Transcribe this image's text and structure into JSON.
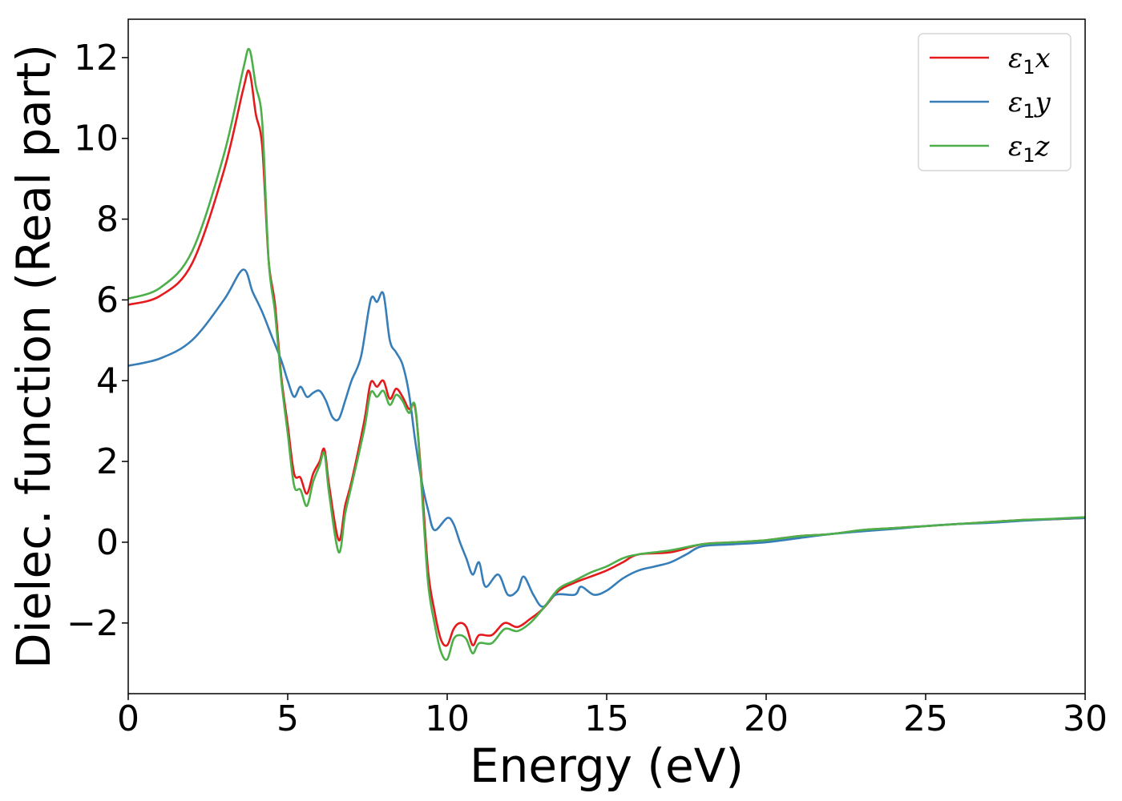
{
  "chart_data": {
    "type": "line",
    "title": "",
    "xlabel": "Energy (eV)",
    "ylabel": "Dielec. function (Real part)",
    "xlim": [
      0,
      30
    ],
    "ylim": [
      -3.75,
      12.95
    ],
    "xticks": [
      0,
      5,
      10,
      15,
      20,
      25,
      30
    ],
    "xtick_labels": [
      "0",
      "5",
      "10",
      "15",
      "20",
      "25",
      "30"
    ],
    "yticks": [
      -2,
      0,
      2,
      4,
      6,
      8,
      10,
      12
    ],
    "ytick_labels": [
      "−2",
      "0",
      "2",
      "4",
      "6",
      "8",
      "10",
      "12"
    ],
    "grid": false,
    "legend_position": "top-right",
    "series": [
      {
        "name": "ε1x",
        "legend_symbol": "ε",
        "legend_sub": "1",
        "legend_var": "x",
        "color": "#e41a1c",
        "points": [
          [
            0,
            5.88
          ],
          [
            1,
            6.1
          ],
          [
            2,
            6.9
          ],
          [
            3,
            9.2
          ],
          [
            3.6,
            11.2
          ],
          [
            3.8,
            11.65
          ],
          [
            4.0,
            10.6
          ],
          [
            4.2,
            9.8
          ],
          [
            4.4,
            7.0
          ],
          [
            4.6,
            5.9
          ],
          [
            4.8,
            4.1
          ],
          [
            5.0,
            2.9
          ],
          [
            5.2,
            1.7
          ],
          [
            5.4,
            1.6
          ],
          [
            5.6,
            1.2
          ],
          [
            5.8,
            1.7
          ],
          [
            6.0,
            2.0
          ],
          [
            6.15,
            2.3
          ],
          [
            6.3,
            1.4
          ],
          [
            6.6,
            0.05
          ],
          [
            6.8,
            0.9
          ],
          [
            7.0,
            1.5
          ],
          [
            7.4,
            3.0
          ],
          [
            7.6,
            3.95
          ],
          [
            7.8,
            3.85
          ],
          [
            8.0,
            4.0
          ],
          [
            8.2,
            3.55
          ],
          [
            8.4,
            3.8
          ],
          [
            8.6,
            3.6
          ],
          [
            8.8,
            3.3
          ],
          [
            9.0,
            3.3
          ],
          [
            9.2,
            1.5
          ],
          [
            9.4,
            -0.7
          ],
          [
            9.6,
            -1.7
          ],
          [
            9.8,
            -2.4
          ],
          [
            10.0,
            -2.55
          ],
          [
            10.2,
            -2.15
          ],
          [
            10.4,
            -2.0
          ],
          [
            10.6,
            -2.1
          ],
          [
            10.8,
            -2.55
          ],
          [
            11.0,
            -2.3
          ],
          [
            11.4,
            -2.3
          ],
          [
            11.8,
            -2.0
          ],
          [
            12.2,
            -2.1
          ],
          [
            12.6,
            -1.9
          ],
          [
            13.0,
            -1.65
          ],
          [
            13.5,
            -1.2
          ],
          [
            14.0,
            -1.0
          ],
          [
            14.5,
            -0.85
          ],
          [
            15.0,
            -0.7
          ],
          [
            15.5,
            -0.5
          ],
          [
            16.0,
            -0.3
          ],
          [
            17.0,
            -0.25
          ],
          [
            18.0,
            -0.05
          ],
          [
            19.0,
            0.0
          ],
          [
            20.0,
            0.05
          ],
          [
            21.0,
            0.15
          ],
          [
            22.0,
            0.2
          ],
          [
            23.0,
            0.3
          ],
          [
            24.0,
            0.35
          ],
          [
            25.0,
            0.4
          ],
          [
            26.0,
            0.45
          ],
          [
            27.0,
            0.5
          ],
          [
            28.0,
            0.55
          ],
          [
            29.0,
            0.57
          ],
          [
            30.0,
            0.6
          ]
        ]
      },
      {
        "name": "ε1y",
        "legend_symbol": "ε",
        "legend_sub": "1",
        "legend_var": "y",
        "color": "#377eb8",
        "points": [
          [
            0,
            4.37
          ],
          [
            1,
            4.55
          ],
          [
            2,
            5.0
          ],
          [
            3,
            6.0
          ],
          [
            3.6,
            6.75
          ],
          [
            3.9,
            6.2
          ],
          [
            4.2,
            5.7
          ],
          [
            4.5,
            5.1
          ],
          [
            4.8,
            4.5
          ],
          [
            5.0,
            4.0
          ],
          [
            5.2,
            3.6
          ],
          [
            5.4,
            3.85
          ],
          [
            5.6,
            3.6
          ],
          [
            5.8,
            3.7
          ],
          [
            6.0,
            3.75
          ],
          [
            6.2,
            3.5
          ],
          [
            6.4,
            3.1
          ],
          [
            6.6,
            3.05
          ],
          [
            6.8,
            3.5
          ],
          [
            7.0,
            4.0
          ],
          [
            7.3,
            4.6
          ],
          [
            7.6,
            6.0
          ],
          [
            7.8,
            5.95
          ],
          [
            8.0,
            6.15
          ],
          [
            8.2,
            5.0
          ],
          [
            8.4,
            4.7
          ],
          [
            8.6,
            4.4
          ],
          [
            8.8,
            3.7
          ],
          [
            9.0,
            2.5
          ],
          [
            9.2,
            1.5
          ],
          [
            9.4,
            0.8
          ],
          [
            9.6,
            0.3
          ],
          [
            10.0,
            0.6
          ],
          [
            10.2,
            0.45
          ],
          [
            10.4,
            0.0
          ],
          [
            10.6,
            -0.4
          ],
          [
            10.8,
            -0.8
          ],
          [
            11.0,
            -0.5
          ],
          [
            11.2,
            -1.1
          ],
          [
            11.6,
            -0.8
          ],
          [
            11.9,
            -1.3
          ],
          [
            12.2,
            -1.2
          ],
          [
            12.4,
            -0.85
          ],
          [
            12.7,
            -1.3
          ],
          [
            13.0,
            -1.6
          ],
          [
            13.4,
            -1.3
          ],
          [
            14.0,
            -1.3
          ],
          [
            14.2,
            -1.1
          ],
          [
            14.6,
            -1.3
          ],
          [
            15.0,
            -1.2
          ],
          [
            15.5,
            -0.9
          ],
          [
            16.0,
            -0.7
          ],
          [
            16.5,
            -0.6
          ],
          [
            17.0,
            -0.5
          ],
          [
            17.5,
            -0.3
          ],
          [
            18.0,
            -0.1
          ],
          [
            19.0,
            -0.05
          ],
          [
            20.0,
            0.0
          ],
          [
            21.0,
            0.1
          ],
          [
            22.0,
            0.2
          ],
          [
            23.0,
            0.27
          ],
          [
            24.0,
            0.33
          ],
          [
            25.0,
            0.4
          ],
          [
            26.0,
            0.45
          ],
          [
            27.0,
            0.48
          ],
          [
            28.0,
            0.53
          ],
          [
            29.0,
            0.57
          ],
          [
            30.0,
            0.6
          ]
        ]
      },
      {
        "name": "ε1z",
        "legend_symbol": "ε",
        "legend_sub": "1",
        "legend_var": "z",
        "color": "#4daf4a",
        "points": [
          [
            0,
            6.03
          ],
          [
            1,
            6.3
          ],
          [
            2,
            7.2
          ],
          [
            3,
            9.6
          ],
          [
            3.6,
            11.7
          ],
          [
            3.8,
            12.2
          ],
          [
            4.0,
            11.3
          ],
          [
            4.2,
            10.4
          ],
          [
            4.4,
            7.0
          ],
          [
            4.6,
            5.7
          ],
          [
            4.8,
            4.0
          ],
          [
            5.0,
            2.7
          ],
          [
            5.2,
            1.4
          ],
          [
            5.4,
            1.3
          ],
          [
            5.6,
            0.9
          ],
          [
            5.8,
            1.5
          ],
          [
            6.0,
            1.9
          ],
          [
            6.15,
            2.2
          ],
          [
            6.3,
            1.2
          ],
          [
            6.6,
            -0.25
          ],
          [
            6.8,
            0.7
          ],
          [
            7.0,
            1.4
          ],
          [
            7.4,
            2.8
          ],
          [
            7.6,
            3.7
          ],
          [
            7.8,
            3.6
          ],
          [
            8.0,
            3.75
          ],
          [
            8.2,
            3.4
          ],
          [
            8.4,
            3.65
          ],
          [
            8.6,
            3.5
          ],
          [
            8.8,
            3.2
          ],
          [
            9.0,
            3.35
          ],
          [
            9.2,
            1.3
          ],
          [
            9.4,
            -1.0
          ],
          [
            9.6,
            -2.0
          ],
          [
            9.8,
            -2.7
          ],
          [
            10.0,
            -2.9
          ],
          [
            10.2,
            -2.4
          ],
          [
            10.4,
            -2.3
          ],
          [
            10.6,
            -2.4
          ],
          [
            10.8,
            -2.75
          ],
          [
            11.0,
            -2.5
          ],
          [
            11.4,
            -2.5
          ],
          [
            11.8,
            -2.15
          ],
          [
            12.2,
            -2.2
          ],
          [
            12.6,
            -2.0
          ],
          [
            13.0,
            -1.65
          ],
          [
            13.5,
            -1.15
          ],
          [
            14.0,
            -0.95
          ],
          [
            14.5,
            -0.75
          ],
          [
            15.0,
            -0.6
          ],
          [
            15.5,
            -0.4
          ],
          [
            16.0,
            -0.3
          ],
          [
            17.0,
            -0.2
          ],
          [
            18.0,
            -0.05
          ],
          [
            19.0,
            0.0
          ],
          [
            20.0,
            0.05
          ],
          [
            21.0,
            0.15
          ],
          [
            22.0,
            0.2
          ],
          [
            23.0,
            0.3
          ],
          [
            24.0,
            0.35
          ],
          [
            25.0,
            0.4
          ],
          [
            26.0,
            0.45
          ],
          [
            27.0,
            0.5
          ],
          [
            28.0,
            0.55
          ],
          [
            29.0,
            0.58
          ],
          [
            30.0,
            0.62
          ]
        ]
      }
    ]
  }
}
